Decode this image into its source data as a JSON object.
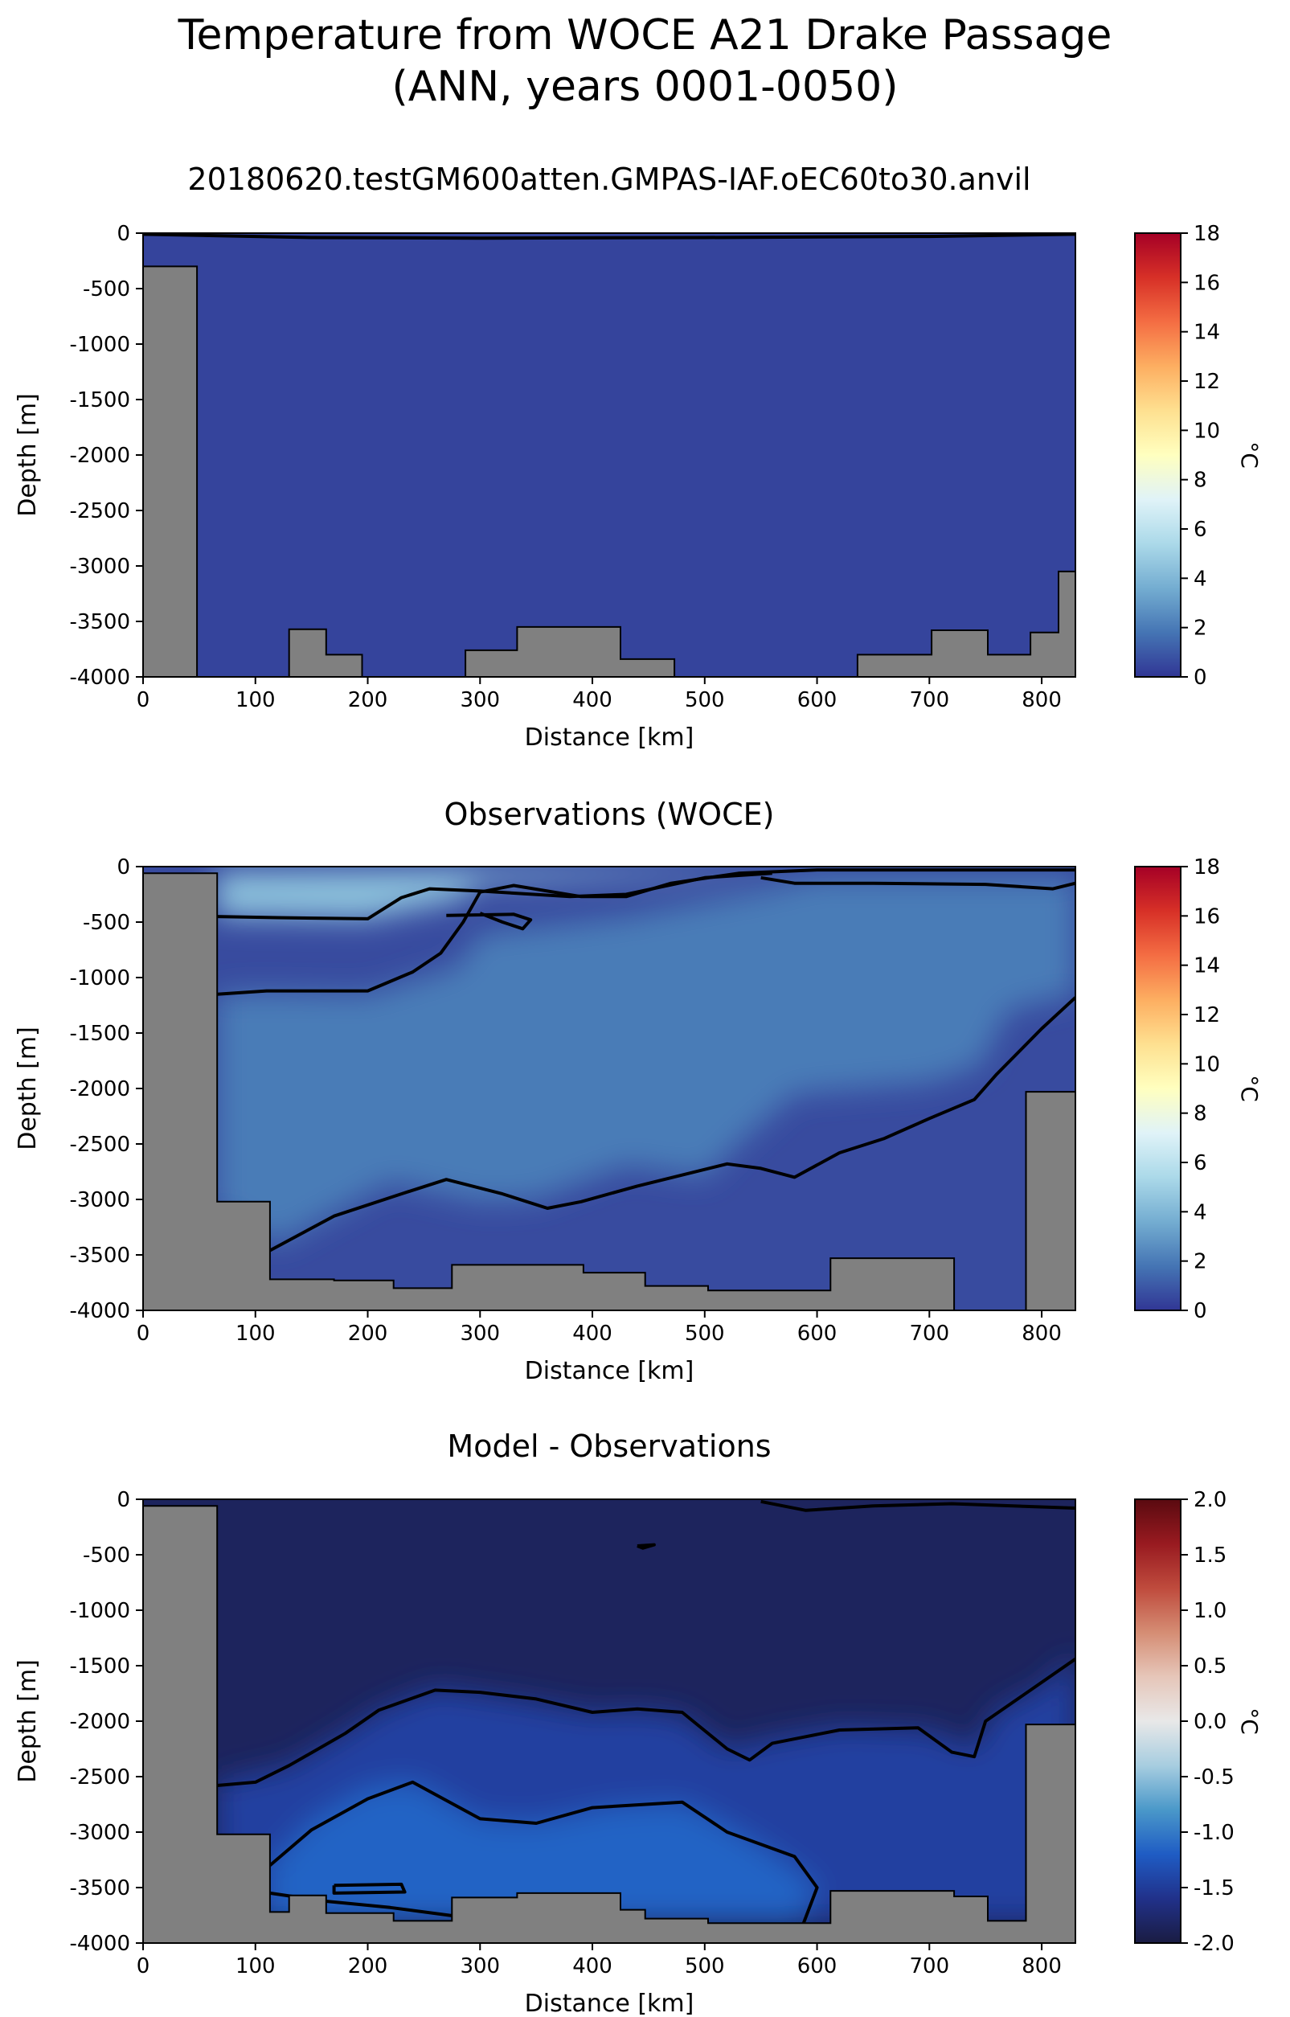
{
  "figure": {
    "title_line1": "Temperature from WOCE A21 Drake Passage",
    "title_line2": "(ANN, years 0001-0050)"
  },
  "colors": {
    "land": "#808080",
    "contour": "#000000",
    "temp_colormap": [
      "#313695",
      "#4575b4",
      "#74add1",
      "#abd9e9",
      "#e0f3f8",
      "#ffffbf",
      "#fee090",
      "#fdae61",
      "#f46d43",
      "#d73027",
      "#a50026"
    ],
    "diff_colormap": [
      "#1a1c42",
      "#21318a",
      "#1f5cc4",
      "#4a98c9",
      "#a7cde0",
      "#e8e8e8",
      "#e6c6b9",
      "#d58d74",
      "#bf4b3d",
      "#981a20",
      "#5a0a10"
    ]
  },
  "chart_data": [
    {
      "type": "heatmap",
      "title": "20180620.testGM600atten.GMPAS-IAF.oEC60to30.anvil",
      "xlabel": "Distance [km]",
      "ylabel": "Depth [m]",
      "xlim": [
        0,
        830
      ],
      "ylim": [
        -4000,
        0
      ],
      "xticks": [
        0,
        100,
        200,
        300,
        400,
        500,
        600,
        700,
        800
      ],
      "yticks": [
        0,
        -500,
        -1000,
        -1500,
        -2000,
        -2500,
        -3000,
        -3500,
        -4000
      ],
      "colorbar": {
        "label": "°C",
        "range": [
          0,
          18
        ],
        "ticks": [
          0,
          2,
          4,
          6,
          8,
          10,
          12,
          14,
          16,
          18
        ]
      },
      "contour_levels": [],
      "field": {
        "default": 0.4,
        "regions": []
      },
      "bathymetry": [
        [
          0,
          -300
        ],
        [
          48,
          -300
        ],
        [
          48,
          -4000
        ],
        [
          130,
          -4000
        ],
        [
          130,
          -3570
        ],
        [
          163,
          -3570
        ],
        [
          163,
          -3800
        ],
        [
          195,
          -3800
        ],
        [
          195,
          -4000
        ],
        [
          287,
          -4000
        ],
        [
          287,
          -3760
        ],
        [
          333,
          -3760
        ],
        [
          333,
          -3550
        ],
        [
          425,
          -3550
        ],
        [
          425,
          -3840
        ],
        [
          473,
          -3840
        ],
        [
          473,
          -4000
        ],
        [
          636,
          -4000
        ],
        [
          636,
          -3800
        ],
        [
          702,
          -3800
        ],
        [
          702,
          -3580
        ],
        [
          752,
          -3580
        ],
        [
          752,
          -3800
        ],
        [
          790,
          -3800
        ],
        [
          790,
          -3600
        ],
        [
          815,
          -3600
        ],
        [
          815,
          -3050
        ],
        [
          830,
          -3050
        ]
      ],
      "contours": [
        [
          [
            0,
            -10
          ],
          [
            150,
            -40
          ],
          [
            300,
            -45
          ],
          [
            500,
            -40
          ],
          [
            700,
            -30
          ],
          [
            830,
            -10
          ]
        ]
      ]
    },
    {
      "type": "heatmap",
      "title": "Observations (WOCE)",
      "xlabel": "Distance [km]",
      "ylabel": "Depth [m]",
      "xlim": [
        0,
        830
      ],
      "ylim": [
        -4000,
        0
      ],
      "xticks": [
        0,
        100,
        200,
        300,
        400,
        500,
        600,
        700,
        800
      ],
      "yticks": [
        0,
        -500,
        -1000,
        -1500,
        -2000,
        -2500,
        -3000,
        -3500,
        -4000
      ],
      "colorbar": {
        "label": "°C",
        "range": [
          0,
          18
        ],
        "ticks": [
          0,
          2,
          4,
          6,
          8,
          10,
          12,
          14,
          16,
          18
        ]
      },
      "contour_levels": [
        0,
        2,
        4
      ],
      "field": {
        "default": 0.6,
        "regions": [
          {
            "value": 2.0,
            "polygon": [
              [
                65,
                -1150
              ],
              [
                100,
                -1130
              ],
              [
                200,
                -1150
              ],
              [
                280,
                -900
              ],
              [
                300,
                -600
              ],
              [
                430,
                -450
              ],
              [
                560,
                -200
              ],
              [
                600,
                -100
              ],
              [
                830,
                -100
              ],
              [
                830,
                -1150
              ],
              [
                770,
                -1300
              ],
              [
                745,
                -1800
              ],
              [
                700,
                -1950
              ],
              [
                580,
                -2050
              ],
              [
                530,
                -2500
              ],
              [
                500,
                -2800
              ],
              [
                430,
                -2700
              ],
              [
                350,
                -3000
              ],
              [
                300,
                -3020
              ],
              [
                220,
                -2850
              ],
              [
                120,
                -3400
              ],
              [
                65,
                -3100
              ]
            ]
          },
          {
            "value": 4.4,
            "polygon": [
              [
                65,
                -450
              ],
              [
                200,
                -470
              ],
              [
                280,
                -300
              ],
              [
                300,
                -150
              ],
              [
                430,
                -100
              ],
              [
                560,
                -40
              ],
              [
                600,
                -30
              ],
              [
                300,
                -30
              ],
              [
                65,
                -50
              ]
            ]
          }
        ]
      },
      "bathymetry": [
        [
          0,
          -60
        ],
        [
          66,
          -60
        ],
        [
          66,
          -3020
        ],
        [
          113,
          -3020
        ],
        [
          113,
          -3720
        ],
        [
          170,
          -3720
        ],
        [
          170,
          -3730
        ],
        [
          223,
          -3730
        ],
        [
          223,
          -3800
        ],
        [
          275,
          -3800
        ],
        [
          275,
          -3590
        ],
        [
          392,
          -3590
        ],
        [
          392,
          -3660
        ],
        [
          447,
          -3660
        ],
        [
          447,
          -3780
        ],
        [
          503,
          -3780
        ],
        [
          503,
          -3820
        ],
        [
          612,
          -3820
        ],
        [
          612,
          -3530
        ],
        [
          722,
          -3530
        ],
        [
          722,
          -4000
        ],
        [
          786,
          -4000
        ],
        [
          786,
          -2030
        ],
        [
          830,
          -2030
        ]
      ],
      "contours": [
        [
          [
            66,
            -1150
          ],
          [
            110,
            -1120
          ],
          [
            200,
            -1120
          ],
          [
            240,
            -950
          ],
          [
            265,
            -780
          ],
          [
            285,
            -500
          ],
          [
            300,
            -230
          ],
          [
            330,
            -170
          ],
          [
            390,
            -270
          ],
          [
            430,
            -270
          ],
          [
            470,
            -150
          ],
          [
            530,
            -60
          ],
          [
            600,
            -30
          ],
          [
            700,
            -30
          ],
          [
            830,
            -30
          ]
        ],
        [
          [
            66,
            -450
          ],
          [
            120,
            -460
          ],
          [
            200,
            -470
          ],
          [
            230,
            -280
          ],
          [
            255,
            -200
          ],
          [
            300,
            -220
          ],
          [
            380,
            -270
          ],
          [
            430,
            -250
          ],
          [
            500,
            -100
          ],
          [
            560,
            -60
          ]
        ],
        [
          [
            270,
            -440
          ],
          [
            330,
            -430
          ],
          [
            345,
            -480
          ],
          [
            338,
            -560
          ],
          [
            320,
            -500
          ],
          [
            300,
            -420
          ]
        ],
        [
          [
            550,
            -100
          ],
          [
            580,
            -150
          ],
          [
            650,
            -150
          ],
          [
            750,
            -160
          ],
          [
            810,
            -200
          ],
          [
            830,
            -150
          ]
        ],
        [
          [
            113,
            -3460
          ],
          [
            170,
            -3150
          ],
          [
            230,
            -2950
          ],
          [
            270,
            -2820
          ],
          [
            320,
            -2950
          ],
          [
            360,
            -3080
          ],
          [
            390,
            -3020
          ],
          [
            440,
            -2880
          ],
          [
            500,
            -2730
          ],
          [
            520,
            -2680
          ],
          [
            550,
            -2720
          ],
          [
            580,
            -2800
          ],
          [
            620,
            -2580
          ],
          [
            660,
            -2450
          ],
          [
            700,
            -2270
          ],
          [
            740,
            -2100
          ],
          [
            760,
            -1870
          ],
          [
            800,
            -1460
          ],
          [
            830,
            -1180
          ]
        ]
      ]
    },
    {
      "type": "heatmap",
      "title": "Model - Observations",
      "xlabel": "Distance [km]",
      "ylabel": "Depth [m]",
      "xlim": [
        0,
        830
      ],
      "ylim": [
        -4000,
        0
      ],
      "xticks": [
        0,
        100,
        200,
        300,
        400,
        500,
        600,
        700,
        800
      ],
      "yticks": [
        0,
        -500,
        -1000,
        -1500,
        -2000,
        -2500,
        -3000,
        -3500,
        -4000
      ],
      "colorbar": {
        "label": "°C",
        "range": [
          -2,
          2
        ],
        "ticks": [
          -2.0,
          -1.5,
          -1.0,
          -0.5,
          0.0,
          0.5,
          1.0,
          1.5,
          2.0
        ]
      },
      "contour_levels": [
        -1.5,
        -1.0
      ],
      "field": {
        "default": -1.85,
        "regions": [
          {
            "value": -1.45,
            "polygon": [
              [
                66,
                -2550
              ],
              [
                130,
                -2400
              ],
              [
                180,
                -2100
              ],
              [
                210,
                -1900
              ],
              [
                260,
                -1700
              ],
              [
                330,
                -1800
              ],
              [
                400,
                -1920
              ],
              [
                440,
                -1900
              ],
              [
                480,
                -1950
              ],
              [
                520,
                -2250
              ],
              [
                560,
                -2150
              ],
              [
                620,
                -2050
              ],
              [
                700,
                -2080
              ],
              [
                740,
                -2250
              ],
              [
                760,
                -1900
              ],
              [
                800,
                -1700
              ],
              [
                830,
                -1400
              ],
              [
                830,
                -3800
              ],
              [
                66,
                -3800
              ]
            ]
          },
          {
            "value": -1.15,
            "polygon": [
              [
                113,
                -3300
              ],
              [
                150,
                -2900
              ],
              [
                200,
                -2600
              ],
              [
                240,
                -2550
              ],
              [
                300,
                -2900
              ],
              [
                350,
                -2920
              ],
              [
                420,
                -2780
              ],
              [
                480,
                -2750
              ],
              [
                520,
                -2950
              ],
              [
                560,
                -3200
              ],
              [
                600,
                -3500
              ],
              [
                585,
                -3820
              ],
              [
                113,
                -3820
              ]
            ]
          }
        ]
      },
      "bathymetry": [
        [
          0,
          -60
        ],
        [
          66,
          -60
        ],
        [
          66,
          -3020
        ],
        [
          113,
          -3020
        ],
        [
          113,
          -3720
        ],
        [
          130,
          -3720
        ],
        [
          130,
          -3570
        ],
        [
          163,
          -3570
        ],
        [
          163,
          -3730
        ],
        [
          223,
          -3730
        ],
        [
          223,
          -3800
        ],
        [
          275,
          -3800
        ],
        [
          275,
          -3590
        ],
        [
          333,
          -3590
        ],
        [
          333,
          -3550
        ],
        [
          425,
          -3550
        ],
        [
          425,
          -3700
        ],
        [
          447,
          -3700
        ],
        [
          447,
          -3780
        ],
        [
          503,
          -3780
        ],
        [
          503,
          -3820
        ],
        [
          612,
          -3820
        ],
        [
          612,
          -3530
        ],
        [
          722,
          -3530
        ],
        [
          722,
          -3580
        ],
        [
          752,
          -3580
        ],
        [
          752,
          -3800
        ],
        [
          786,
          -3800
        ],
        [
          786,
          -2030
        ],
        [
          830,
          -2030
        ]
      ],
      "contours": [
        [
          [
            66,
            -2580
          ],
          [
            100,
            -2550
          ],
          [
            130,
            -2400
          ],
          [
            180,
            -2110
          ],
          [
            210,
            -1900
          ],
          [
            260,
            -1720
          ],
          [
            300,
            -1740
          ],
          [
            350,
            -1800
          ],
          [
            400,
            -1920
          ],
          [
            440,
            -1890
          ],
          [
            480,
            -1920
          ],
          [
            520,
            -2250
          ],
          [
            540,
            -2350
          ],
          [
            560,
            -2200
          ],
          [
            620,
            -2080
          ],
          [
            690,
            -2060
          ],
          [
            720,
            -2280
          ],
          [
            740,
            -2320
          ],
          [
            750,
            -2000
          ],
          [
            790,
            -1720
          ],
          [
            830,
            -1440
          ]
        ],
        [
          [
            113,
            -3300
          ],
          [
            150,
            -2980
          ],
          [
            200,
            -2700
          ],
          [
            240,
            -2550
          ],
          [
            300,
            -2880
          ],
          [
            350,
            -2920
          ],
          [
            400,
            -2780
          ],
          [
            480,
            -2730
          ],
          [
            520,
            -3000
          ],
          [
            580,
            -3220
          ],
          [
            600,
            -3500
          ],
          [
            588,
            -3820
          ]
        ],
        [
          [
            170,
            -3480
          ],
          [
            230,
            -3470
          ],
          [
            233,
            -3540
          ],
          [
            170,
            -3550
          ],
          [
            170,
            -3480
          ]
        ],
        [
          [
            113,
            -3550
          ],
          [
            160,
            -3620
          ],
          [
            220,
            -3680
          ],
          [
            280,
            -3760
          ]
        ],
        [
          [
            550,
            -20
          ],
          [
            590,
            -100
          ],
          [
            650,
            -60
          ],
          [
            720,
            -40
          ],
          [
            830,
            -80
          ]
        ],
        [
          [
            440,
            -420
          ],
          [
            455,
            -410
          ],
          [
            445,
            -440
          ],
          [
            440,
            -420
          ]
        ]
      ]
    }
  ]
}
